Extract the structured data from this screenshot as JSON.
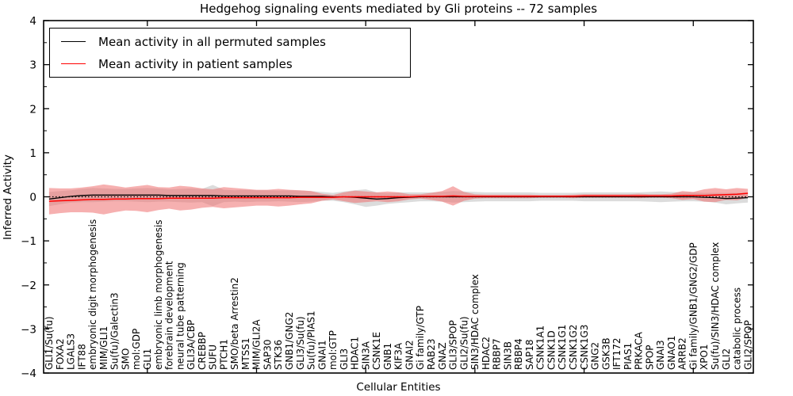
{
  "title": "Hedgehog signaling events mediated by Gli proteins -- 72 samples",
  "legend": {
    "entries": [
      {
        "label": "Mean activity in all permuted samples",
        "color": "#000000"
      },
      {
        "label": "Mean activity in patient samples",
        "color": "#ff0000"
      }
    ]
  },
  "axes": {
    "x_label": "Cellular Entities",
    "y_label": "Inferred Activity"
  },
  "chart_data": {
    "type": "line",
    "title": "Hedgehog signaling events mediated by Gli proteins -- 72 samples",
    "xlabel": "Cellular Entities",
    "ylabel": "Inferred Activity",
    "ylim": [
      -4,
      4
    ],
    "grid": false,
    "legend_position": "upper left",
    "y_tick_values": [
      4,
      3,
      2,
      1,
      0,
      -1,
      -2,
      -3,
      -4
    ],
    "y_tick_labels": [
      "4",
      "3",
      "2",
      "1",
      "0",
      "−1",
      "−2",
      "−3",
      "−4"
    ],
    "y_minor_tick_values": [
      3.5,
      2.5,
      1.5,
      0.5,
      -0.5,
      -1.5,
      -2.5,
      -3.5
    ],
    "x_major_tick_indices": [
      9,
      19,
      29,
      39,
      49,
      59
    ],
    "zero_line": {
      "y": 0,
      "style": "dotted",
      "color": "#000000"
    },
    "categories": [
      "GLI1/Su(fu)",
      "FOXA2",
      "LGALS3",
      "IFT88",
      "embryonic digit morphogenesis",
      "MIM/GLI1",
      "Su(fu)/Galectin3",
      "SMO",
      "mol:GDP",
      "GLI1",
      "embryonic limb morphogenesis",
      "forebrain development",
      "neural tube patterning",
      "GLI3A/CBP",
      "CREBBP",
      "SUFU",
      "PTCH1",
      "SMO/beta Arrestin2",
      "MTSS1",
      "MIM/GLI2A",
      "SAP30",
      "STK36",
      "GNB1/GNG2",
      "GLI3/Su(fu)",
      "Su(fu)/PIAS1",
      "GNAI1",
      "mol:GTP",
      "GLI3",
      "HDAC1",
      "SIN3A",
      "CSNK1E",
      "GNB1",
      "KIF3A",
      "GNAI2",
      "Gi family/GTP",
      "RAB23",
      "GNAZ",
      "GLI3/SPOP",
      "GLI2/Su(fu)",
      "SIN3/HDAC complex",
      "HDAC2",
      "RBBP7",
      "SIN3B",
      "RBBP4",
      "SAP18",
      "CSNK1A1",
      "CSNK1D",
      "CSNK1G1",
      "CSNK1G2",
      "CSNK1G3",
      "GNG2",
      "GSK3B",
      "IFT172",
      "PIAS1",
      "PRKACA",
      "SPOP",
      "GNAI3",
      "GNAO1",
      "ARRB2",
      "Gi family/GNB1/GNG2/GDP",
      "XPO1",
      "Su(fu)/SIN3/HDAC complex",
      "GLI2",
      "catabolic process",
      "GLI2/SPOP"
    ],
    "series": [
      {
        "name": "Mean activity in all permuted samples",
        "color": "#000000",
        "band_color": "#b9b9b9",
        "band_opacity": 0.5,
        "values": [
          -0.05,
          -0.02,
          0.01,
          0.03,
          0.04,
          0.04,
          0.04,
          0.04,
          0.04,
          0.04,
          0.04,
          0.03,
          0.03,
          0.03,
          0.03,
          0.03,
          0.02,
          0.02,
          0.02,
          0.02,
          0.02,
          0.02,
          0.02,
          0.01,
          0.01,
          0.01,
          0.0,
          0.0,
          -0.01,
          -0.03,
          -0.05,
          -0.04,
          -0.02,
          -0.01,
          0.0,
          0.0,
          0.0,
          0.0,
          0.0,
          0.0,
          0.0,
          0.0,
          0.0,
          0.0,
          0.0,
          0.0,
          0.0,
          0.0,
          0.0,
          0.0,
          0.0,
          0.0,
          0.0,
          0.0,
          0.0,
          0.0,
          0.0,
          0.0,
          0.0,
          0.0,
          -0.01,
          -0.02,
          -0.04,
          -0.03,
          -0.02
        ],
        "band_std": [
          0.16,
          0.15,
          0.14,
          0.15,
          0.16,
          0.15,
          0.14,
          0.14,
          0.15,
          0.16,
          0.15,
          0.14,
          0.15,
          0.16,
          0.15,
          0.24,
          0.14,
          0.13,
          0.14,
          0.13,
          0.13,
          0.12,
          0.13,
          0.13,
          0.12,
          0.1,
          0.09,
          0.12,
          0.16,
          0.2,
          0.15,
          0.12,
          0.12,
          0.11,
          0.1,
          0.1,
          0.11,
          0.13,
          0.12,
          0.11,
          0.1,
          0.1,
          0.1,
          0.1,
          0.1,
          0.09,
          0.09,
          0.09,
          0.09,
          0.1,
          0.1,
          0.1,
          0.1,
          0.1,
          0.1,
          0.11,
          0.12,
          0.11,
          0.1,
          0.1,
          0.1,
          0.11,
          0.13,
          0.12,
          0.11
        ]
      },
      {
        "name": "Mean activity in patient samples",
        "color": "#ff0000",
        "band_color": "#ee7070",
        "band_opacity": 0.55,
        "values": [
          -0.1,
          -0.09,
          -0.08,
          -0.07,
          -0.06,
          -0.06,
          -0.05,
          -0.05,
          -0.04,
          -0.04,
          -0.04,
          -0.03,
          -0.03,
          -0.03,
          -0.03,
          -0.03,
          -0.02,
          -0.02,
          -0.02,
          -0.02,
          -0.02,
          -0.02,
          -0.02,
          -0.01,
          -0.01,
          -0.01,
          -0.01,
          0.0,
          0.0,
          0.0,
          0.0,
          0.0,
          0.0,
          0.0,
          0.01,
          0.01,
          0.01,
          0.02,
          0.01,
          0.01,
          0.01,
          0.01,
          0.01,
          0.01,
          0.01,
          0.01,
          0.01,
          0.01,
          0.01,
          0.02,
          0.02,
          0.02,
          0.02,
          0.02,
          0.02,
          0.02,
          0.02,
          0.02,
          0.03,
          0.03,
          0.03,
          0.04,
          0.05,
          0.06,
          0.08
        ],
        "band_std": [
          0.3,
          0.28,
          0.27,
          0.28,
          0.3,
          0.34,
          0.3,
          0.26,
          0.28,
          0.31,
          0.26,
          0.24,
          0.28,
          0.26,
          0.22,
          0.2,
          0.24,
          0.22,
          0.2,
          0.18,
          0.18,
          0.2,
          0.18,
          0.16,
          0.14,
          0.08,
          0.05,
          0.1,
          0.14,
          0.12,
          0.1,
          0.12,
          0.1,
          0.06,
          0.05,
          0.08,
          0.12,
          0.22,
          0.1,
          0.05,
          0.04,
          0.04,
          0.04,
          0.04,
          0.04,
          0.03,
          0.03,
          0.03,
          0.04,
          0.04,
          0.04,
          0.04,
          0.04,
          0.04,
          0.05,
          0.04,
          0.04,
          0.05,
          0.1,
          0.08,
          0.14,
          0.16,
          0.12,
          0.14,
          0.1
        ]
      }
    ]
  }
}
